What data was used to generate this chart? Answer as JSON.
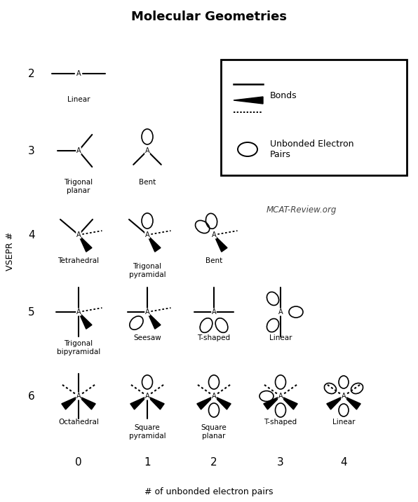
{
  "title": "Molecular Geometries",
  "ylabel": "VSEPR #",
  "xlabel": "# of unbonded electron pairs",
  "watermark": "MCAT-Review.org",
  "legend_bonds_label": "Bonds",
  "legend_pairs_label": "Unbonded Electron\nPairs",
  "background_color": "#ffffff",
  "line_color": "#000000",
  "fig_width": 5.96,
  "fig_height": 7.16,
  "fig_dpi": 100
}
